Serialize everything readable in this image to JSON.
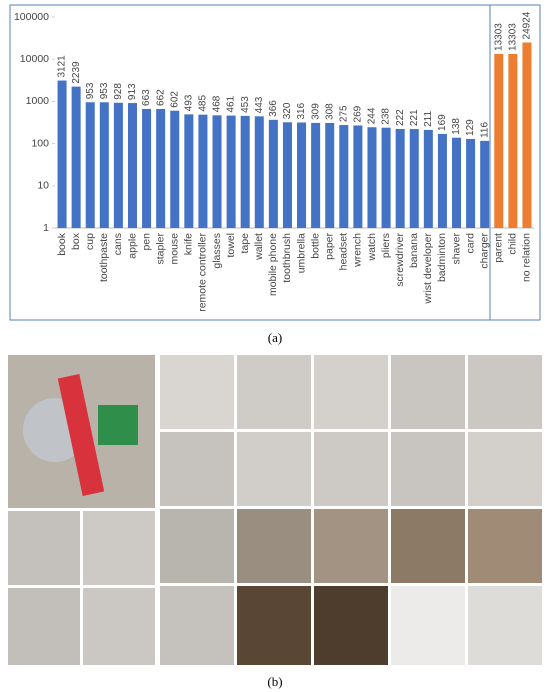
{
  "chart_data": {
    "type": "bar",
    "log_scale": true,
    "grid": false,
    "categories": [
      "book",
      "box",
      "cup",
      "toothpaste",
      "cans",
      "apple",
      "pen",
      "stapler",
      "mouse",
      "knife",
      "remote controller",
      "glasses",
      "towel",
      "tape",
      "wallet",
      "mobile phone",
      "toothbrush",
      "umbrella",
      "bottle",
      "paper",
      "headset",
      "wrench",
      "watch",
      "pliers",
      "screwdriver",
      "banana",
      "wrist developer",
      "badminton",
      "shaver",
      "card",
      "charger",
      "parent",
      "child",
      "no relation"
    ],
    "values": [
      3121,
      2239,
      953,
      953,
      928,
      913,
      663,
      662,
      602,
      493,
      485,
      468,
      461,
      453,
      443,
      366,
      320,
      316,
      309,
      308,
      275,
      269,
      244,
      238,
      222,
      221,
      211,
      169,
      138,
      129,
      116,
      13303,
      13303,
      24924
    ],
    "bar_colors": [
      "#4472c4",
      "#4472c4",
      "#4472c4",
      "#4472c4",
      "#4472c4",
      "#4472c4",
      "#4472c4",
      "#4472c4",
      "#4472c4",
      "#4472c4",
      "#4472c4",
      "#4472c4",
      "#4472c4",
      "#4472c4",
      "#4472c4",
      "#4472c4",
      "#4472c4",
      "#4472c4",
      "#4472c4",
      "#4472c4",
      "#4472c4",
      "#4472c4",
      "#4472c4",
      "#4472c4",
      "#4472c4",
      "#4472c4",
      "#4472c4",
      "#4472c4",
      "#4472c4",
      "#4472c4",
      "#4472c4",
      "#ed7d31",
      "#ed7d31",
      "#ed7d31"
    ],
    "ylim": [
      1,
      100000
    ],
    "yticks": [
      1,
      10,
      100,
      1000,
      10000,
      100000
    ]
  },
  "panel_labels": [
    "(a)",
    "(b)"
  ]
}
